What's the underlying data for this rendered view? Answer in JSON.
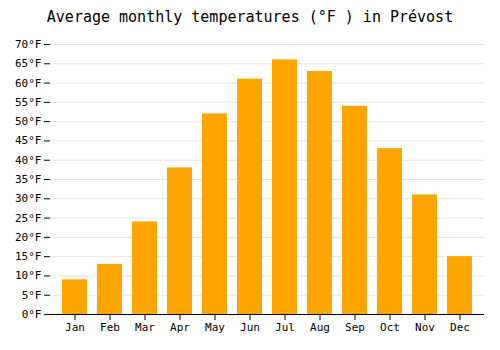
{
  "chart_data": {
    "type": "bar",
    "title": "Average monthly temperatures (°F ) in Prévost",
    "categories": [
      "Jan",
      "Feb",
      "Mar",
      "Apr",
      "May",
      "Jun",
      "Jul",
      "Aug",
      "Sep",
      "Oct",
      "Nov",
      "Dec"
    ],
    "values": [
      9,
      13,
      24,
      38,
      52,
      61,
      66,
      63,
      54,
      43,
      31,
      15
    ],
    "color": "#FFA500",
    "ylim": [
      0,
      70
    ],
    "yticks": [
      {
        "value": 0,
        "label": "0°F"
      },
      {
        "value": 5,
        "label": "5°F"
      },
      {
        "value": 10,
        "label": "10°F"
      },
      {
        "value": 15,
        "label": "15°F"
      },
      {
        "value": 20,
        "label": "20°F"
      },
      {
        "value": 25,
        "label": "25°F"
      },
      {
        "value": 30,
        "label": "30°F"
      },
      {
        "value": 35,
        "label": "35°F"
      },
      {
        "value": 40,
        "label": "40°F"
      },
      {
        "value": 45,
        "label": "45°F"
      },
      {
        "value": 50,
        "label": "50°F"
      },
      {
        "value": 55,
        "label": "55°F"
      },
      {
        "value": 60,
        "label": "60°F"
      },
      {
        "value": 65,
        "label": "65°F"
      },
      {
        "value": 70,
        "label": "70°F"
      }
    ],
    "grid": true
  }
}
